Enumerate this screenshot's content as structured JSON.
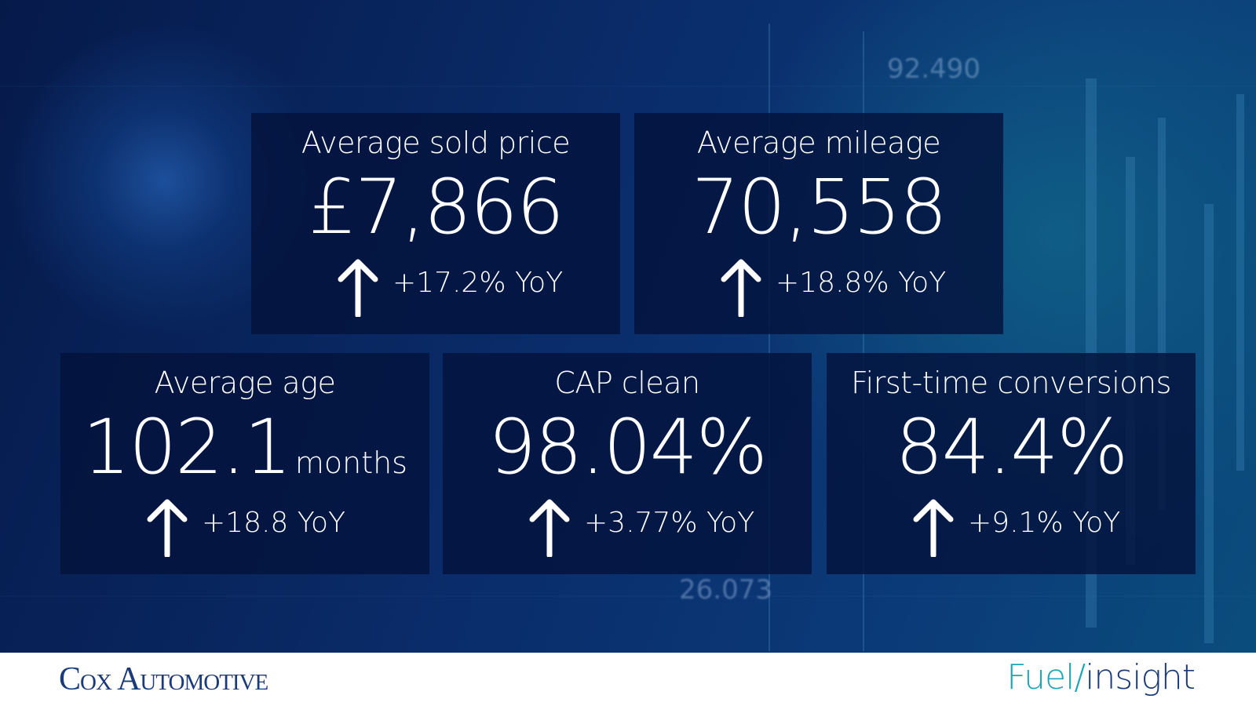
{
  "cards": [
    {
      "label": "Average sold price",
      "value": "£7,866",
      "change": "+17.2% YoY"
    },
    {
      "label": "Average mileage",
      "value": "70,558",
      "change": "+18.8% YoY"
    },
    {
      "label": "Average age",
      "value": "102.1",
      "unit": "months",
      "change": "+18.8 YoY"
    },
    {
      "label": "CAP clean",
      "value": "98.04%",
      "change": "+3.77% YoY"
    },
    {
      "label": "First-time conversions",
      "value": "84.4%",
      "change": "+9.1% YoY"
    }
  ],
  "background_texts": [
    "92.490",
    "26.073"
  ],
  "footer": {
    "left_logo": "Cox Automotive",
    "right_logo": {
      "first": "Fuel/",
      "second": "insight"
    }
  }
}
